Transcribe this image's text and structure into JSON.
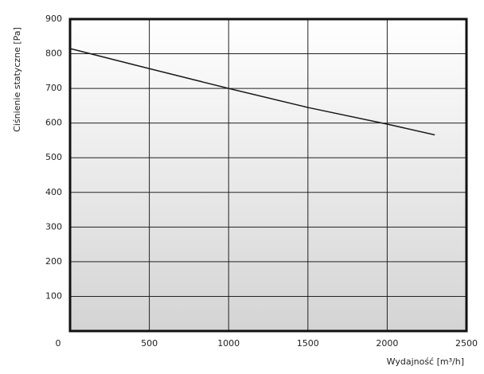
{
  "chart_data": {
    "type": "line",
    "x_label": "Wydajność [m³/h]",
    "y_label": "Ciśnienie statyczne [Pa]",
    "x": [
      0,
      500,
      1000,
      1500,
      2000,
      2300
    ],
    "series": [
      {
        "name": null,
        "color": "#1a1a1a",
        "values": [
          815,
          757,
          700,
          645,
          597,
          566
        ]
      }
    ],
    "xlim": [
      0,
      2500
    ],
    "xticks": [
      0,
      500,
      1000,
      1500,
      2000,
      2500
    ],
    "ylim": [
      0,
      900
    ],
    "yticks": [
      100,
      200,
      300,
      400,
      500,
      600,
      700,
      800,
      900
    ],
    "grid": true
  }
}
